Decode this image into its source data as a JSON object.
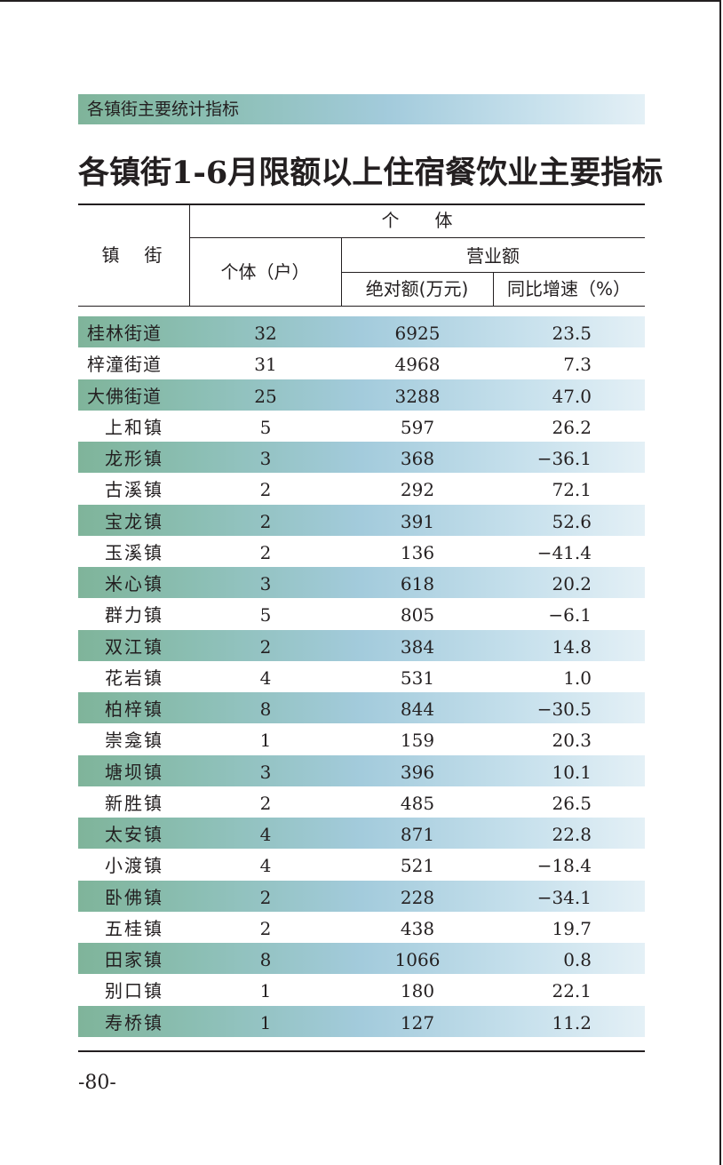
{
  "section_title": "各镇街主要统计指标",
  "title": "各镇街1-6月限额以上住宿餐饮业主要指标",
  "header": {
    "row_header": "镇　街",
    "group": "个　　体",
    "count_col": "个体（户）",
    "revenue_group": "营业额",
    "abs_col": "绝对额(万元)",
    "yoy_col": "同比增速（%）"
  },
  "rows": [
    {
      "name": "桂林街道",
      "count": "32",
      "abs": "6925",
      "yoy": "23.5"
    },
    {
      "name": "梓潼街道",
      "count": "31",
      "abs": "4968",
      "yoy": "7.3"
    },
    {
      "name": "大佛街道",
      "count": "25",
      "abs": "3288",
      "yoy": "47.0"
    },
    {
      "name": "上和镇",
      "count": "5",
      "abs": "597",
      "yoy": "26.2"
    },
    {
      "name": "龙形镇",
      "count": "3",
      "abs": "368",
      "yoy": "−36.1"
    },
    {
      "name": "古溪镇",
      "count": "2",
      "abs": "292",
      "yoy": "72.1"
    },
    {
      "name": "宝龙镇",
      "count": "2",
      "abs": "391",
      "yoy": "52.6"
    },
    {
      "name": "玉溪镇",
      "count": "2",
      "abs": "136",
      "yoy": "−41.4"
    },
    {
      "name": "米心镇",
      "count": "3",
      "abs": "618",
      "yoy": "20.2"
    },
    {
      "name": "群力镇",
      "count": "5",
      "abs": "805",
      "yoy": "−6.1"
    },
    {
      "name": "双江镇",
      "count": "2",
      "abs": "384",
      "yoy": "14.8"
    },
    {
      "name": "花岩镇",
      "count": "4",
      "abs": "531",
      "yoy": "1.0"
    },
    {
      "name": "柏梓镇",
      "count": "8",
      "abs": "844",
      "yoy": "−30.5"
    },
    {
      "name": "崇龛镇",
      "count": "1",
      "abs": "159",
      "yoy": "20.3"
    },
    {
      "name": "塘坝镇",
      "count": "3",
      "abs": "396",
      "yoy": "10.1"
    },
    {
      "name": "新胜镇",
      "count": "2",
      "abs": "485",
      "yoy": "26.5"
    },
    {
      "name": "太安镇",
      "count": "4",
      "abs": "871",
      "yoy": "22.8"
    },
    {
      "name": "小渡镇",
      "count": "4",
      "abs": "521",
      "yoy": "−18.4"
    },
    {
      "name": "卧佛镇",
      "count": "2",
      "abs": "228",
      "yoy": "−34.1"
    },
    {
      "name": "五桂镇",
      "count": "2",
      "abs": "438",
      "yoy": "19.7"
    },
    {
      "name": "田家镇",
      "count": "8",
      "abs": "1066",
      "yoy": "0.8"
    },
    {
      "name": "别口镇",
      "count": "1",
      "abs": "180",
      "yoy": "22.1"
    },
    {
      "name": "寿桥镇",
      "count": "1",
      "abs": "127",
      "yoy": "11.2"
    }
  ],
  "page_number": "-80-"
}
